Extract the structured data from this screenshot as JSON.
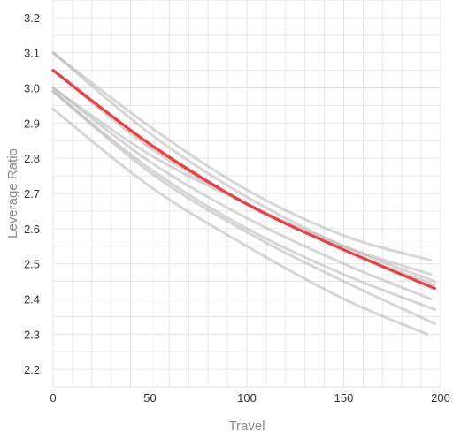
{
  "chart_data": {
    "type": "line",
    "xlabel": "Travel",
    "ylabel": "Leverage Ratio",
    "xlim": [
      0,
      200
    ],
    "ylim": [
      2.15,
      3.25
    ],
    "x_ticks": [
      0,
      50,
      100,
      150,
      200
    ],
    "y_ticks": [
      2.2,
      2.3,
      2.4,
      2.5,
      2.6,
      2.7,
      2.8,
      2.9,
      3.0,
      3.1,
      3.2
    ],
    "grid": true,
    "highlight_color": "#f03c3c",
    "background_series_color": "#b4b4b4",
    "series": [
      {
        "highlight": false,
        "x": [
          0,
          50,
          100,
          150,
          195
        ],
        "y": [
          3.1,
          2.89,
          2.71,
          2.58,
          2.51
        ]
      },
      {
        "highlight": false,
        "x": [
          0,
          50,
          100,
          150,
          197
        ],
        "y": [
          3.1,
          2.87,
          2.69,
          2.55,
          2.45
        ]
      },
      {
        "highlight": false,
        "x": [
          0,
          50,
          100,
          150,
          197
        ],
        "y": [
          3.05,
          2.83,
          2.67,
          2.54,
          2.44
        ]
      },
      {
        "highlight": false,
        "x": [
          0,
          50,
          100,
          150,
          195
        ],
        "y": [
          3.0,
          2.81,
          2.67,
          2.55,
          2.47
        ]
      },
      {
        "highlight": false,
        "x": [
          0,
          50,
          100,
          150,
          195
        ],
        "y": [
          3.0,
          2.79,
          2.63,
          2.5,
          2.4
        ]
      },
      {
        "highlight": false,
        "x": [
          0,
          50,
          100,
          150,
          197
        ],
        "y": [
          2.99,
          2.77,
          2.6,
          2.47,
          2.37
        ]
      },
      {
        "highlight": false,
        "x": [
          0,
          50,
          100,
          150,
          197
        ],
        "y": [
          2.99,
          2.76,
          2.59,
          2.45,
          2.33
        ]
      },
      {
        "highlight": false,
        "x": [
          0,
          50,
          100,
          150,
          193
        ],
        "y": [
          2.94,
          2.72,
          2.55,
          2.4,
          2.3
        ]
      },
      {
        "highlight": true,
        "x": [
          0,
          50,
          100,
          150,
          197
        ],
        "y": [
          3.05,
          2.84,
          2.67,
          2.54,
          2.43
        ]
      }
    ]
  }
}
